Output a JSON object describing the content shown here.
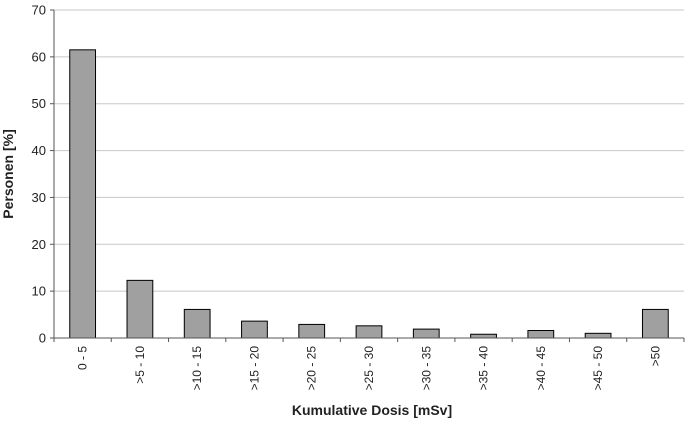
{
  "chart_data": {
    "type": "bar",
    "title": "",
    "xlabel": "Kumulative Dosis [mSv]",
    "ylabel": "Personen [%]",
    "ylim": [
      0,
      70
    ],
    "yticks": [
      0,
      10,
      20,
      30,
      40,
      50,
      60,
      70
    ],
    "grid": true,
    "legend": "none",
    "categories": [
      "0 - 5",
      ">5 - 10",
      ">10 - 15",
      ">15 - 20",
      ">20 - 25",
      ">25 - 30",
      ">30 - 35",
      ">35 - 40",
      ">40 - 45",
      ">45 - 50",
      ">50"
    ],
    "values": [
      61.5,
      12.3,
      6.1,
      3.6,
      2.9,
      2.6,
      1.9,
      0.8,
      1.6,
      1.0,
      6.1
    ],
    "colors": {
      "bar_fill": "#a0a0a0",
      "bar_stroke": "#000000",
      "grid": "#c8c8c8",
      "axis": "#555555"
    }
  }
}
